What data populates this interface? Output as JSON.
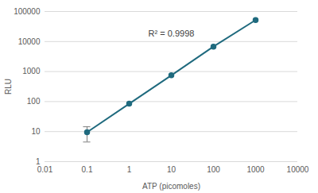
{
  "chart_data": {
    "type": "line",
    "x_label": "ATP (picomoles)",
    "y_label": "RLU",
    "log": true,
    "grid": true,
    "marker": "circle",
    "color": "#1f6a7e",
    "x": [
      0.1,
      1,
      10,
      100,
      1000
    ],
    "values": [
      9.5,
      85,
      750,
      6800,
      52000
    ],
    "error_low": [
      4.5,
      null,
      null,
      null,
      null
    ],
    "error_high": [
      14.5,
      null,
      null,
      null,
      null
    ],
    "annotations": [
      "R² = 0.9998"
    ],
    "xlim": [
      0.01,
      10000
    ],
    "xticks": [
      0.01,
      0.1,
      1,
      10,
      100,
      1000,
      10000
    ],
    "ylim": [
      1,
      100000
    ],
    "yticks": [
      1,
      10,
      100,
      1000,
      10000,
      100000
    ]
  }
}
